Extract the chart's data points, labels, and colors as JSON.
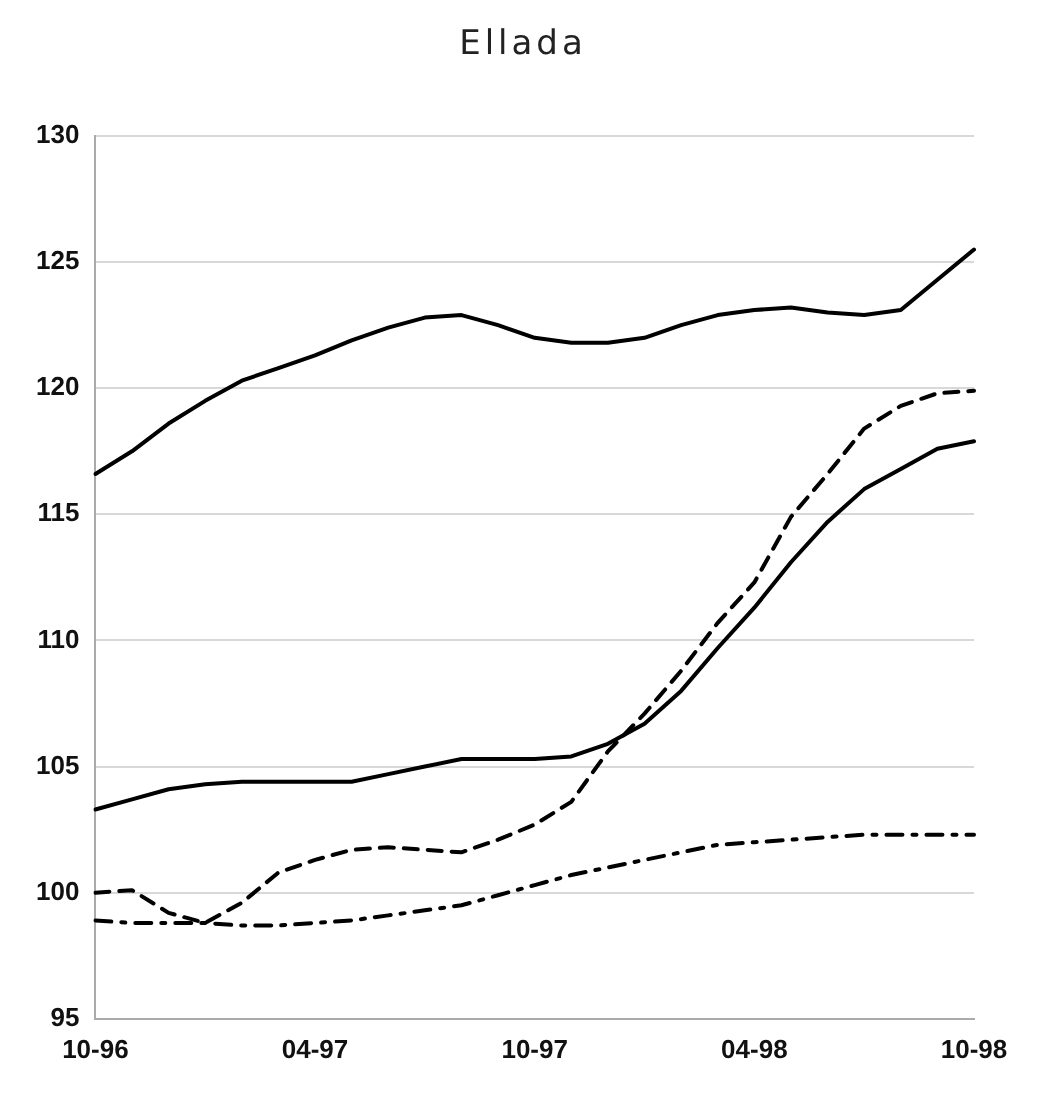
{
  "chart_data": {
    "type": "line",
    "title": "Ellada",
    "categories": [
      "10-96",
      null,
      null,
      null,
      null,
      null,
      "04-97",
      null,
      null,
      null,
      null,
      null,
      "10-97",
      null,
      null,
      null,
      null,
      null,
      "04-98",
      null,
      null,
      null,
      null,
      null,
      "10-98"
    ],
    "series": [
      {
        "color": "#000000",
        "line_style": "solid",
        "values": [
          116.6,
          117.5,
          118.6,
          119.5,
          120.3,
          120.8,
          121.3,
          121.9,
          122.4,
          122.8,
          122.9,
          122.5,
          122.0,
          121.8,
          121.8,
          122.0,
          122.5,
          122.9,
          123.1,
          123.2,
          123.0,
          122.9,
          123.1,
          124.3,
          125.5
        ]
      },
      {
        "color": "#000000",
        "line_style": "solid",
        "values": [
          103.3,
          103.7,
          104.1,
          104.3,
          104.4,
          104.4,
          104.4,
          104.4,
          104.7,
          105.0,
          105.3,
          105.3,
          105.3,
          105.4,
          105.9,
          106.7,
          108.0,
          109.7,
          111.3,
          113.1,
          114.7,
          116.0,
          116.8,
          117.6,
          117.9
        ]
      },
      {
        "color": "#000000",
        "line_style": "dashed",
        "values": [
          100.0,
          100.1,
          99.2,
          98.8,
          99.6,
          100.8,
          101.3,
          101.7,
          101.8,
          101.7,
          101.6,
          102.1,
          102.7,
          103.6,
          105.6,
          107.1,
          108.8,
          110.7,
          112.3,
          114.9,
          116.6,
          118.4,
          119.3,
          119.8,
          119.9
        ]
      },
      {
        "color": "#000000",
        "line_style": "dotted",
        "values": [
          98.9,
          98.8,
          98.8,
          98.8,
          98.7,
          98.7,
          98.8,
          98.9,
          99.1,
          99.3,
          99.5,
          99.9,
          100.3,
          100.7,
          101.0,
          101.3,
          101.6,
          101.9,
          102.0,
          102.1,
          102.2,
          102.3,
          102.3,
          102.3,
          102.3
        ]
      }
    ],
    "ylim": [
      95,
      130
    ],
    "yticks": [
      95,
      100,
      105,
      110,
      115,
      120,
      125,
      130
    ],
    "grid": "y",
    "marker": "none",
    "legend": false
  }
}
